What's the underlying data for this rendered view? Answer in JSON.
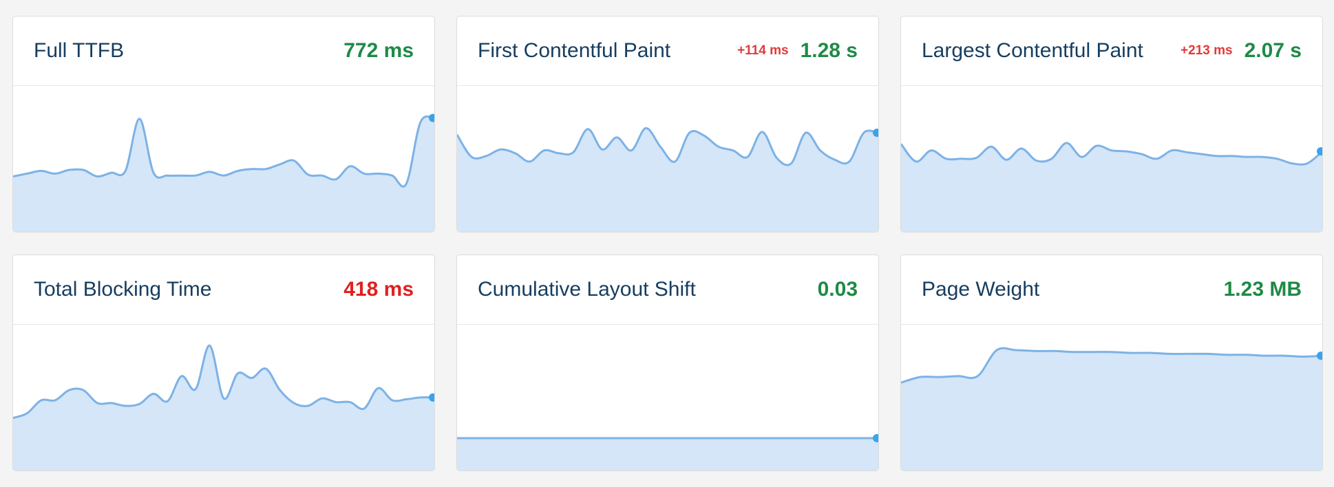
{
  "colors": {
    "good": "#1e8a46",
    "poor": "#e02020",
    "delta_regression": "#e03a3a",
    "line": "#7cb2e6",
    "fill": "#d4e6f8",
    "endpoint": "#3aa3ec",
    "title": "#163d5f"
  },
  "cards": [
    {
      "title": "Full TTFB",
      "delta": "",
      "value": "772 ms",
      "status": "good",
      "spark": [
        0.3,
        0.33,
        0.36,
        0.33,
        0.37,
        0.37,
        0.3,
        0.34,
        0.36,
        0.92,
        0.34,
        0.31,
        0.31,
        0.31,
        0.35,
        0.31,
        0.36,
        0.38,
        0.38,
        0.43,
        0.47,
        0.32,
        0.31,
        0.27,
        0.41,
        0.33,
        0.33,
        0.31,
        0.22,
        0.88,
        0.93
      ]
    },
    {
      "title": "First Contentful Paint",
      "delta": "+114 ms",
      "value": "1.28 s",
      "status": "good",
      "spark": [
        0.75,
        0.51,
        0.52,
        0.59,
        0.55,
        0.46,
        0.58,
        0.55,
        0.56,
        0.81,
        0.59,
        0.72,
        0.58,
        0.82,
        0.62,
        0.46,
        0.77,
        0.74,
        0.62,
        0.58,
        0.51,
        0.78,
        0.5,
        0.44,
        0.77,
        0.58,
        0.48,
        0.46,
        0.77,
        0.77
      ]
    },
    {
      "title": "Largest Contentful Paint",
      "delta": "+213 ms",
      "value": "2.07 s",
      "status": "good",
      "spark": [
        0.65,
        0.46,
        0.58,
        0.49,
        0.49,
        0.5,
        0.62,
        0.48,
        0.6,
        0.47,
        0.49,
        0.66,
        0.51,
        0.63,
        0.58,
        0.57,
        0.54,
        0.49,
        0.58,
        0.56,
        0.54,
        0.52,
        0.52,
        0.51,
        0.51,
        0.49,
        0.44,
        0.44,
        0.57
      ]
    },
    {
      "title": "Total Blocking Time",
      "delta": "",
      "value": "418 ms",
      "status": "poor",
      "spark": [
        0.27,
        0.32,
        0.46,
        0.46,
        0.57,
        0.57,
        0.43,
        0.43,
        0.4,
        0.42,
        0.53,
        0.45,
        0.72,
        0.58,
        1.05,
        0.48,
        0.75,
        0.7,
        0.8,
        0.57,
        0.43,
        0.4,
        0.48,
        0.44,
        0.44,
        0.37,
        0.59,
        0.46,
        0.47,
        0.49,
        0.49
      ]
    },
    {
      "title": "Cumulative Layout Shift",
      "delta": "",
      "value": "0.03",
      "status": "good",
      "spark": [
        0.0,
        0.0
      ]
    },
    {
      "title": "Page Weight",
      "delta": "",
      "value": "1.23 MB",
      "status": "good",
      "spark": [
        0.65,
        0.71,
        0.71,
        0.72,
        0.72,
        1.0,
        1.0,
        0.99,
        0.99,
        0.98,
        0.98,
        0.98,
        0.97,
        0.97,
        0.96,
        0.96,
        0.96,
        0.95,
        0.95,
        0.94,
        0.94,
        0.93,
        0.94
      ]
    }
  ]
}
